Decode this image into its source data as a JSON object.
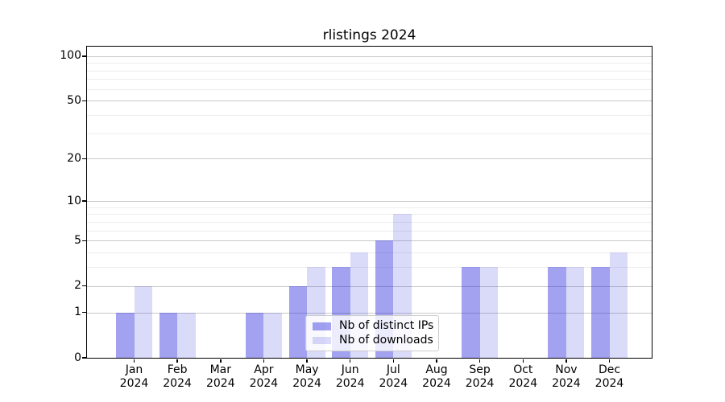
{
  "title": "rlistings 2024",
  "chart_data": {
    "type": "bar",
    "title": "rlistings 2024",
    "y_scale": "log1p (position proportional to log10(1+y))",
    "categories": [
      "Jan",
      "Feb",
      "Mar",
      "Apr",
      "May",
      "Jun",
      "Jul",
      "Aug",
      "Sep",
      "Oct",
      "Nov",
      "Dec"
    ],
    "year_label": "2024",
    "series": [
      {
        "name": "Nb of distinct IPs",
        "color": "rgba(34,34,221,0.42)",
        "values": [
          1,
          1,
          0,
          1,
          2,
          3,
          5,
          0,
          3,
          0,
          3,
          3
        ]
      },
      {
        "name": "Nb of downloads",
        "color": "rgba(34,34,221,0.17)",
        "values": [
          2,
          1,
          0,
          1,
          3,
          4,
          8,
          0,
          3,
          0,
          3,
          4
        ]
      }
    ],
    "y_major_ticks": [
      0,
      1,
      2,
      5,
      10,
      20,
      50,
      100
    ],
    "y_minor_ticks": [
      3,
      4,
      6,
      7,
      8,
      9,
      30,
      40,
      60,
      70,
      80,
      90
    ],
    "ylim": [
      0,
      115
    ],
    "grid": "on",
    "legend_position": "lower center"
  },
  "colors": {
    "background": "#ffffff",
    "bar_distinct_ips": "rgba(34,34,221,0.42)",
    "bar_downloads": "rgba(34,34,221,0.17)",
    "major_grid": "#c9c9c9",
    "minor_grid": "#ececec",
    "spine": "#000000",
    "legend_border": "#cccccc"
  }
}
